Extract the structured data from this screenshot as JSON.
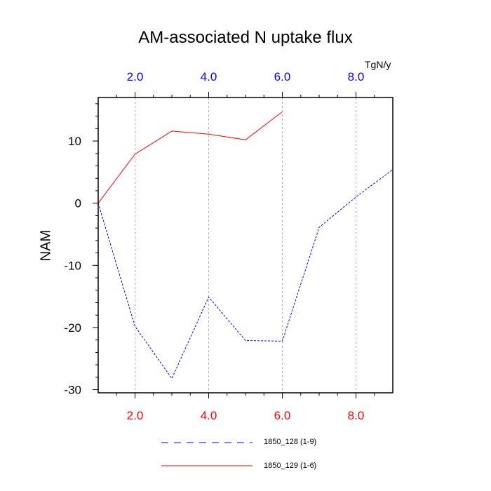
{
  "chart_data": {
    "type": "line",
    "title": "AM-associated N uptake flux",
    "ylabel": "NAM",
    "top_axis_units": "TgN/y",
    "xlim": [
      1,
      9
    ],
    "ylim": [
      -30.5,
      17
    ],
    "x_ticks": [
      2,
      4,
      6,
      8
    ],
    "x_tick_labels": [
      "2.0",
      "4.0",
      "6.0",
      "8.0"
    ],
    "y_ticks": [
      -30,
      -20,
      -10,
      0,
      10
    ],
    "y_tick_labels": [
      "-30",
      "-20",
      "-10",
      "0",
      "10"
    ],
    "grid": "vertical dashed at x ticks",
    "bottom_axis_color": "#ff0000",
    "top_axis_color": "#0000ff",
    "series": [
      {
        "name": "1850_128 (1-9)",
        "color": "#0000ff",
        "dash": "dashed",
        "x": [
          1,
          2,
          3,
          4,
          5,
          6,
          7,
          8,
          9
        ],
        "y": [
          0,
          -19.8,
          -28.2,
          -15.1,
          -22.1,
          -22.2,
          -3.9,
          1.0,
          5.4
        ]
      },
      {
        "name": "1850_129 (1-6)",
        "color": "#ff0000",
        "dash": "solid",
        "x": [
          1,
          2,
          3,
          4,
          5,
          6
        ],
        "y": [
          0,
          7.9,
          11.6,
          11.1,
          10.2,
          14.7
        ]
      }
    ],
    "legend_position": "bottom-center"
  }
}
